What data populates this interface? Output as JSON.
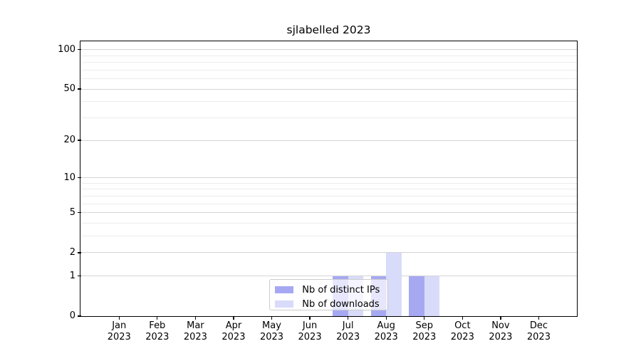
{
  "title": "sjlabelled 2023",
  "chart_data": {
    "type": "bar",
    "title": "sjlabelled 2023",
    "categories": [
      "Jan 2023",
      "Feb 2023",
      "Mar 2023",
      "Apr 2023",
      "May 2023",
      "Jun 2023",
      "Jul 2023",
      "Aug 2023",
      "Sep 2023",
      "Oct 2023",
      "Nov 2023",
      "Dec 2023"
    ],
    "series": [
      {
        "name": "Nb of distinct IPs",
        "color": "#a6a9f2",
        "values": [
          0,
          0,
          0,
          0,
          0,
          0,
          1,
          1,
          1,
          0,
          0,
          0
        ]
      },
      {
        "name": "Nb of downloads",
        "color": "#d8dbf9",
        "values": [
          0,
          0,
          0,
          0,
          0,
          0,
          1,
          2,
          1,
          0,
          0,
          0
        ]
      }
    ],
    "xlabel": "",
    "ylabel": "",
    "y_axis": {
      "scale": "log1p",
      "tick_values": [
        0,
        1,
        2,
        5,
        10,
        20,
        50,
        100
      ],
      "minor_grid_values": [
        3,
        4,
        6,
        7,
        8,
        9,
        30,
        40,
        60,
        70,
        80,
        90
      ],
      "ylim": [
        0,
        115
      ]
    },
    "grid": true,
    "bar_layout": "grouped-pair",
    "legend_location": "lower center"
  },
  "colors": {
    "background": "#ffffff",
    "frame": "#000000",
    "text": "#000000",
    "major_grid": "#d4d4d4",
    "minor_grid": "#ececec",
    "legend_border": "#cccccc"
  }
}
